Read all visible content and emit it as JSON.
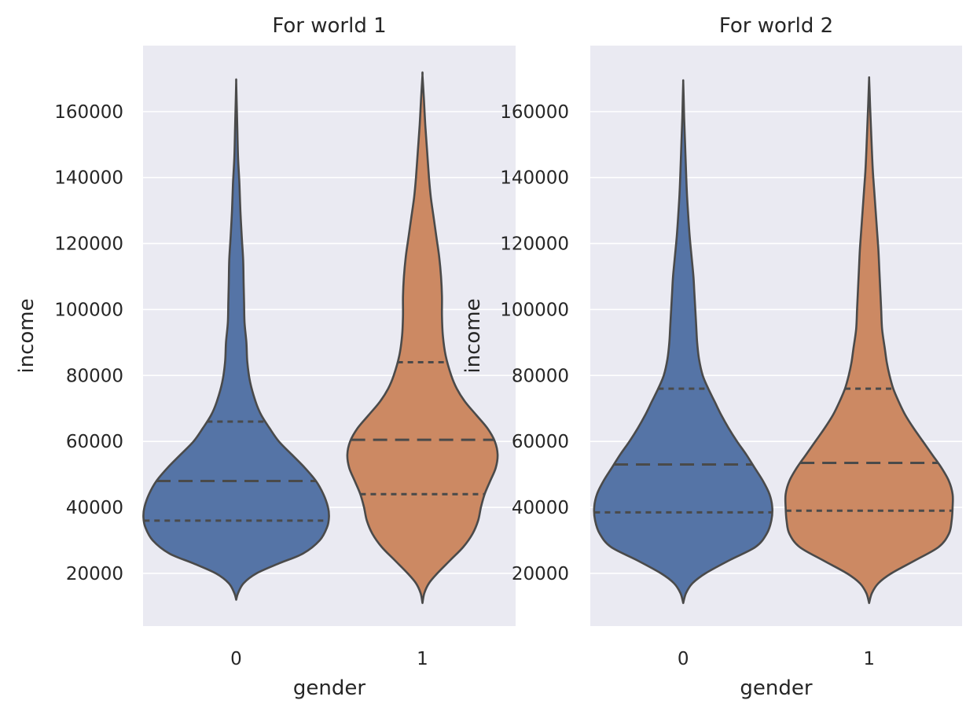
{
  "figure": {
    "background": "#ffffff"
  },
  "style": {
    "panel_bg": "#eaeaf2",
    "grid_color": "#ffffff",
    "outline_color": "#4a4a4a",
    "series_colors": [
      "#5574a6",
      "#cc8963"
    ]
  },
  "chart_data": [
    {
      "type": "violin",
      "title": "For world 1",
      "xlabel": "gender",
      "ylabel": "income",
      "categories": [
        "0",
        "1"
      ],
      "ylim": [
        4000,
        180000
      ],
      "yticks": [
        "20000",
        "40000",
        "60000",
        "80000",
        "100000",
        "120000",
        "140000",
        "160000"
      ],
      "grid": "horizontal",
      "violins": [
        {
          "category": "0",
          "color": "#5574a6",
          "quartiles": [
            36000,
            48000,
            66000
          ],
          "profile": [
            [
              12000,
              0.0
            ],
            [
              14000,
              0.02
            ],
            [
              17000,
              0.08
            ],
            [
              20000,
              0.22
            ],
            [
              23000,
              0.46
            ],
            [
              26000,
              0.72
            ],
            [
              30000,
              0.9
            ],
            [
              34000,
              0.98
            ],
            [
              37000,
              1.0
            ],
            [
              40000,
              0.99
            ],
            [
              44000,
              0.94
            ],
            [
              48000,
              0.86
            ],
            [
              52000,
              0.74
            ],
            [
              56000,
              0.6
            ],
            [
              60000,
              0.46
            ],
            [
              64000,
              0.36
            ],
            [
              68000,
              0.27
            ],
            [
              72000,
              0.21
            ],
            [
              78000,
              0.15
            ],
            [
              84000,
              0.12
            ],
            [
              90000,
              0.11
            ],
            [
              96000,
              0.09
            ],
            [
              102000,
              0.085
            ],
            [
              108000,
              0.08
            ],
            [
              115000,
              0.075
            ],
            [
              122000,
              0.06
            ],
            [
              130000,
              0.045
            ],
            [
              138000,
              0.035
            ],
            [
              146000,
              0.02
            ],
            [
              155000,
              0.012
            ],
            [
              163000,
              0.005
            ],
            [
              169000,
              0.0
            ]
          ]
        },
        {
          "category": "1",
          "color": "#cc8963",
          "quartiles": [
            44000,
            60500,
            84000
          ],
          "profile": [
            [
              11000,
              0.0
            ],
            [
              14000,
              0.02
            ],
            [
              17000,
              0.07
            ],
            [
              20000,
              0.16
            ],
            [
              24000,
              0.3
            ],
            [
              28000,
              0.44
            ],
            [
              32000,
              0.54
            ],
            [
              36000,
              0.6
            ],
            [
              40000,
              0.63
            ],
            [
              44000,
              0.67
            ],
            [
              48000,
              0.73
            ],
            [
              52000,
              0.79
            ],
            [
              56000,
              0.81
            ],
            [
              60000,
              0.78
            ],
            [
              64000,
              0.7
            ],
            [
              68000,
              0.58
            ],
            [
              72000,
              0.46
            ],
            [
              76000,
              0.37
            ],
            [
              80000,
              0.31
            ],
            [
              86000,
              0.25
            ],
            [
              92000,
              0.22
            ],
            [
              98000,
              0.21
            ],
            [
              104000,
              0.21
            ],
            [
              110000,
              0.2
            ],
            [
              116000,
              0.18
            ],
            [
              122000,
              0.15
            ],
            [
              128000,
              0.12
            ],
            [
              134000,
              0.09
            ],
            [
              140000,
              0.07
            ],
            [
              148000,
              0.05
            ],
            [
              156000,
              0.03
            ],
            [
              164000,
              0.015
            ],
            [
              171000,
              0.0
            ]
          ]
        }
      ]
    },
    {
      "type": "violin",
      "title": "For world 2",
      "xlabel": "gender",
      "ylabel": "income",
      "categories": [
        "0",
        "1"
      ],
      "ylim": [
        4000,
        180000
      ],
      "yticks": [
        "20000",
        "40000",
        "60000",
        "80000",
        "100000",
        "120000",
        "140000",
        "160000"
      ],
      "grid": "horizontal",
      "violins": [
        {
          "category": "0",
          "color": "#5574a6",
          "quartiles": [
            38500,
            53000,
            76000
          ],
          "profile": [
            [
              11000,
              0.0
            ],
            [
              14000,
              0.03
            ],
            [
              17000,
              0.1
            ],
            [
              20000,
              0.24
            ],
            [
              24000,
              0.5
            ],
            [
              28000,
              0.78
            ],
            [
              32000,
              0.9
            ],
            [
              36000,
              0.95
            ],
            [
              40000,
              0.96
            ],
            [
              44000,
              0.93
            ],
            [
              48000,
              0.86
            ],
            [
              52000,
              0.77
            ],
            [
              56000,
              0.68
            ],
            [
              60000,
              0.58
            ],
            [
              64000,
              0.49
            ],
            [
              68000,
              0.41
            ],
            [
              72000,
              0.34
            ],
            [
              76000,
              0.27
            ],
            [
              80000,
              0.21
            ],
            [
              85000,
              0.17
            ],
            [
              90000,
              0.15
            ],
            [
              95000,
              0.14
            ],
            [
              100000,
              0.13
            ],
            [
              105000,
              0.12
            ],
            [
              110000,
              0.11
            ],
            [
              116000,
              0.09
            ],
            [
              122000,
              0.07
            ],
            [
              128000,
              0.055
            ],
            [
              135000,
              0.04
            ],
            [
              142000,
              0.03
            ],
            [
              150000,
              0.02
            ],
            [
              158000,
              0.01
            ],
            [
              165000,
              0.004
            ],
            [
              169000,
              0.0
            ]
          ]
        },
        {
          "category": "1",
          "color": "#cc8963",
          "quartiles": [
            39000,
            53500,
            76000
          ],
          "profile": [
            [
              11000,
              0.0
            ],
            [
              14000,
              0.03
            ],
            [
              17000,
              0.1
            ],
            [
              20000,
              0.24
            ],
            [
              24000,
              0.5
            ],
            [
              28000,
              0.75
            ],
            [
              32000,
              0.86
            ],
            [
              36000,
              0.89
            ],
            [
              40000,
              0.9
            ],
            [
              44000,
              0.9
            ],
            [
              48000,
              0.86
            ],
            [
              52000,
              0.78
            ],
            [
              56000,
              0.68
            ],
            [
              60000,
              0.58
            ],
            [
              64000,
              0.48
            ],
            [
              68000,
              0.39
            ],
            [
              72000,
              0.32
            ],
            [
              76000,
              0.26
            ],
            [
              80000,
              0.22
            ],
            [
              84000,
              0.19
            ],
            [
              88000,
              0.17
            ],
            [
              94000,
              0.14
            ],
            [
              100000,
              0.13
            ],
            [
              106000,
              0.12
            ],
            [
              112000,
              0.11
            ],
            [
              118000,
              0.1
            ],
            [
              124000,
              0.085
            ],
            [
              130000,
              0.07
            ],
            [
              136000,
              0.055
            ],
            [
              142000,
              0.04
            ],
            [
              148000,
              0.03
            ],
            [
              155000,
              0.02
            ],
            [
              162000,
              0.01
            ],
            [
              167000,
              0.004
            ],
            [
              170000,
              0.0
            ]
          ]
        }
      ]
    }
  ]
}
